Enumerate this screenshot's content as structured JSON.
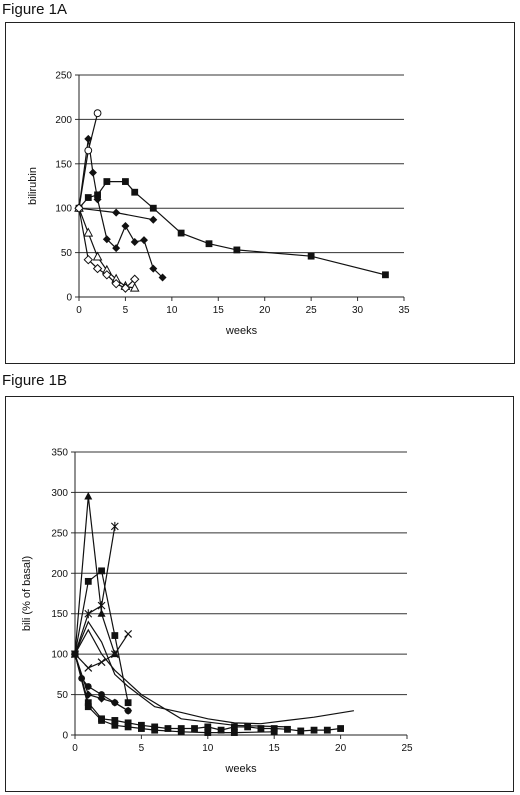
{
  "figures": {
    "a_label": "Figure 1A",
    "b_label": "Figure 1B"
  },
  "chart_data": [
    {
      "type": "line",
      "title": "",
      "xlabel": "weeks",
      "ylabel": "bilirubin",
      "xlim": [
        0,
        35
      ],
      "ylim": [
        0,
        250
      ],
      "xticks": [
        "0",
        "5",
        "10",
        "15",
        "20",
        "25",
        "30",
        "35"
      ],
      "yticks": [
        "0",
        "50",
        "100",
        "150",
        "200",
        "250"
      ],
      "grid": "horizontal",
      "legend": "none",
      "series": [
        {
          "marker": "square",
          "x": [
            0,
            1,
            2,
            3,
            5,
            6,
            8,
            11,
            14,
            17,
            25,
            33
          ],
          "y": [
            100,
            112,
            115,
            130,
            130,
            118,
            100,
            72,
            60,
            53,
            46,
            25
          ]
        },
        {
          "marker": "diamond",
          "x": [
            0,
            4,
            8
          ],
          "y": [
            100,
            95,
            87
          ]
        },
        {
          "marker": "diamond",
          "x": [
            0,
            1,
            1.5,
            2,
            3,
            4,
            5,
            6,
            7,
            8,
            9
          ],
          "y": [
            100,
            178,
            140,
            110,
            65,
            55,
            80,
            62,
            64,
            32,
            22
          ]
        },
        {
          "marker": "circle-open",
          "x": [
            0,
            1,
            2
          ],
          "y": [
            100,
            165,
            207
          ]
        },
        {
          "marker": "triangle-open",
          "x": [
            0,
            1,
            2,
            3,
            4,
            5,
            6
          ],
          "y": [
            100,
            72,
            45,
            30,
            20,
            12,
            10
          ]
        },
        {
          "marker": "diamond-open",
          "x": [
            0,
            1,
            2,
            3,
            4,
            5,
            6
          ],
          "y": [
            100,
            42,
            32,
            25,
            15,
            10,
            20
          ]
        }
      ]
    },
    {
      "type": "line",
      "title": "",
      "xlabel": "weeks",
      "ylabel": "bili (% of basal)",
      "xlim": [
        0,
        25
      ],
      "ylim": [
        0,
        350
      ],
      "xticks": [
        "0",
        "5",
        "10",
        "15",
        "20",
        "25"
      ],
      "yticks": [
        "0",
        "50",
        "100",
        "150",
        "200",
        "250",
        "300",
        "350"
      ],
      "grid": "horizontal",
      "legend": "none",
      "series": [
        {
          "marker": "triangle",
          "x": [
            0,
            1,
            2,
            3
          ],
          "y": [
            100,
            295,
            150,
            100
          ]
        },
        {
          "marker": "star",
          "x": [
            0,
            1,
            2,
            3
          ],
          "y": [
            100,
            150,
            160,
            258
          ]
        },
        {
          "marker": "square",
          "x": [
            0,
            1,
            2,
            3,
            4
          ],
          "y": [
            100,
            190,
            203,
            123,
            40
          ]
        },
        {
          "marker": "cross",
          "x": [
            0,
            1,
            2,
            3,
            4
          ],
          "y": [
            100,
            83,
            90,
            100,
            125
          ]
        },
        {
          "marker": "none",
          "x": [
            0,
            1,
            2,
            3,
            4,
            6,
            8,
            10,
            12,
            14,
            16,
            18,
            21
          ],
          "y": [
            100,
            140,
            115,
            75,
            60,
            35,
            28,
            20,
            15,
            14,
            18,
            22,
            30
          ]
        },
        {
          "marker": "none",
          "x": [
            0,
            1,
            2,
            3,
            5,
            8,
            12,
            16
          ],
          "y": [
            100,
            130,
            100,
            80,
            50,
            20,
            12,
            10
          ]
        },
        {
          "marker": "diamond",
          "x": [
            0,
            1,
            2,
            3,
            4
          ],
          "y": [
            100,
            50,
            45,
            40,
            30
          ]
        },
        {
          "marker": "circle",
          "x": [
            0,
            0.5,
            1,
            2,
            3,
            4
          ],
          "y": [
            100,
            70,
            60,
            50,
            40,
            30
          ]
        },
        {
          "marker": "square",
          "x": [
            0,
            1,
            2,
            3,
            4,
            5,
            6,
            7,
            8,
            9,
            10,
            11,
            12,
            13,
            14,
            15,
            16,
            17,
            18,
            19,
            20
          ],
          "y": [
            100,
            40,
            20,
            18,
            15,
            12,
            10,
            8,
            8,
            8,
            10,
            6,
            10,
            10,
            8,
            8,
            7,
            5,
            6,
            6,
            8
          ]
        },
        {
          "marker": "square",
          "x": [
            0,
            1,
            2,
            3,
            4,
            5,
            6,
            8,
            10,
            12,
            15
          ],
          "y": [
            100,
            35,
            18,
            12,
            10,
            8,
            6,
            4,
            3,
            3,
            4
          ]
        }
      ]
    }
  ]
}
